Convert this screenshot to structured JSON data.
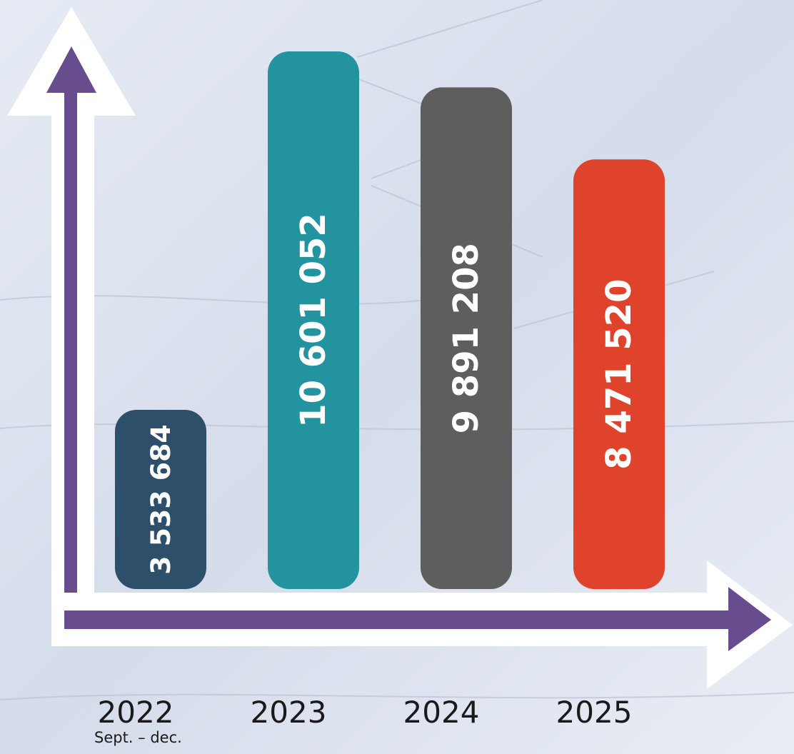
{
  "chart_data": {
    "type": "bar",
    "categories": [
      "2022",
      "2023",
      "2024",
      "2025"
    ],
    "values": [
      3533684,
      10601052,
      9891208,
      8471520
    ],
    "value_labels": [
      "3 533 684",
      "10 601 052",
      "9 891 208",
      "8 471 520"
    ],
    "colors": [
      "#2e4f6a",
      "#2393a0",
      "#5e5e5e",
      "#e0432b"
    ],
    "annotation": "Sept. – dec."
  }
}
